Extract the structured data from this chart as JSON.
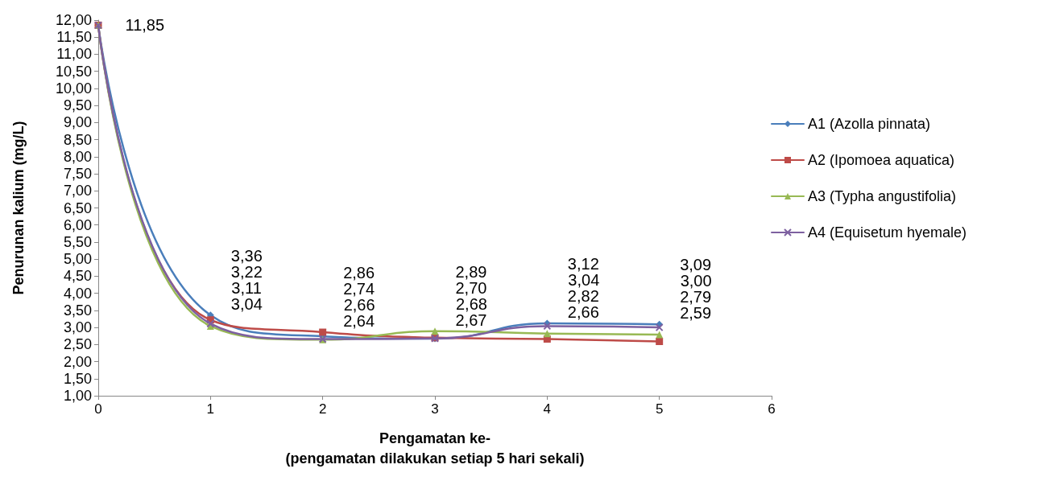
{
  "chart_data": {
    "type": "line",
    "xlabel": "Pengamatan ke-\n(pengamatan dilakukan setiap 5 hari sekali)",
    "ylabel": "Penurunan kalium (mg/L)",
    "x": [
      0,
      1,
      2,
      3,
      4,
      5
    ],
    "series": [
      {
        "name": "A1 (Azolla pinnata)",
        "color": "#4a7ebb",
        "marker": "diamond",
        "values": [
          11.85,
          3.36,
          2.74,
          2.67,
          3.12,
          3.09
        ],
        "value_labels": [
          "11,85",
          "3,36",
          "2,74",
          "2,67",
          "3,12",
          "3,09"
        ]
      },
      {
        "name": "A2 (Ipomoea aquatica)",
        "color": "#be4b48",
        "marker": "square",
        "values": [
          11.85,
          3.22,
          2.86,
          2.7,
          2.66,
          2.59
        ],
        "value_labels": [
          null,
          "3,22",
          "2,86",
          "2,70",
          "2,66",
          "2,59"
        ]
      },
      {
        "name": "A3 (Typha angustifolia)",
        "color": "#98b954",
        "marker": "triangle",
        "values": [
          11.85,
          3.04,
          2.64,
          2.89,
          2.82,
          2.79
        ],
        "value_labels": [
          null,
          "3,04",
          "2,64",
          "2,89",
          "2,82",
          "2,79"
        ]
      },
      {
        "name": "A4 (Equisetum hyemale)",
        "color": "#7d60a0",
        "marker": "cross",
        "values": [
          11.85,
          3.11,
          2.66,
          2.68,
          3.04,
          3.0
        ],
        "value_labels": [
          null,
          "3,11",
          "2,66",
          "2,68",
          "3,04",
          "3,00"
        ]
      }
    ],
    "xlim": [
      0,
      6
    ],
    "xticks": [
      0,
      1,
      2,
      3,
      4,
      5,
      6
    ],
    "ylim": [
      1,
      12
    ],
    "yticks": [
      {
        "value": 1,
        "label": "1,00"
      },
      {
        "value": 1.5,
        "label": "1,50"
      },
      {
        "value": 2,
        "label": "2,00"
      },
      {
        "value": 2.5,
        "label": "2,50"
      },
      {
        "value": 3,
        "label": "3,00"
      },
      {
        "value": 3.5,
        "label": "3,50"
      },
      {
        "value": 4,
        "label": "4,00"
      },
      {
        "value": 4.5,
        "label": "4,50"
      },
      {
        "value": 5,
        "label": "5,00"
      },
      {
        "value": 5.5,
        "label": "5,50"
      },
      {
        "value": 6,
        "label": "6,00"
      },
      {
        "value": 6.5,
        "label": "6,50"
      },
      {
        "value": 7,
        "label": "7,00"
      },
      {
        "value": 7.5,
        "label": "7,50"
      },
      {
        "value": 8,
        "label": "8,00"
      },
      {
        "value": 8.5,
        "label": "8,50"
      },
      {
        "value": 9,
        "label": "9,00"
      },
      {
        "value": 9.5,
        "label": "9,50"
      },
      {
        "value": 10,
        "label": "10,00"
      },
      {
        "value": 10.5,
        "label": "10,50"
      },
      {
        "value": 11,
        "label": "11,00"
      },
      {
        "value": 11.5,
        "label": "11,50"
      },
      {
        "value": 12,
        "label": "12,00"
      }
    ],
    "grid": false,
    "legend": "right",
    "line_style": "solid"
  }
}
